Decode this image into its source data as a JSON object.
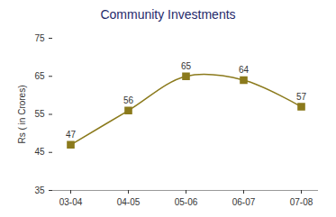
{
  "chart_data": {
    "type": "line",
    "title": "Community Investments",
    "y_label": "Rs ( in Crores)",
    "categories": [
      "03-04",
      "04-05",
      "05-06",
      "06-07",
      "07-08"
    ],
    "values": [
      47,
      56,
      65,
      64,
      57
    ],
    "color": "#8b7a1c",
    "marker": "square",
    "line_style": "solid",
    "ylim": [
      35,
      75
    ],
    "yticks": [
      35,
      45,
      55,
      65,
      75
    ],
    "grid": false,
    "data_labels": true
  }
}
